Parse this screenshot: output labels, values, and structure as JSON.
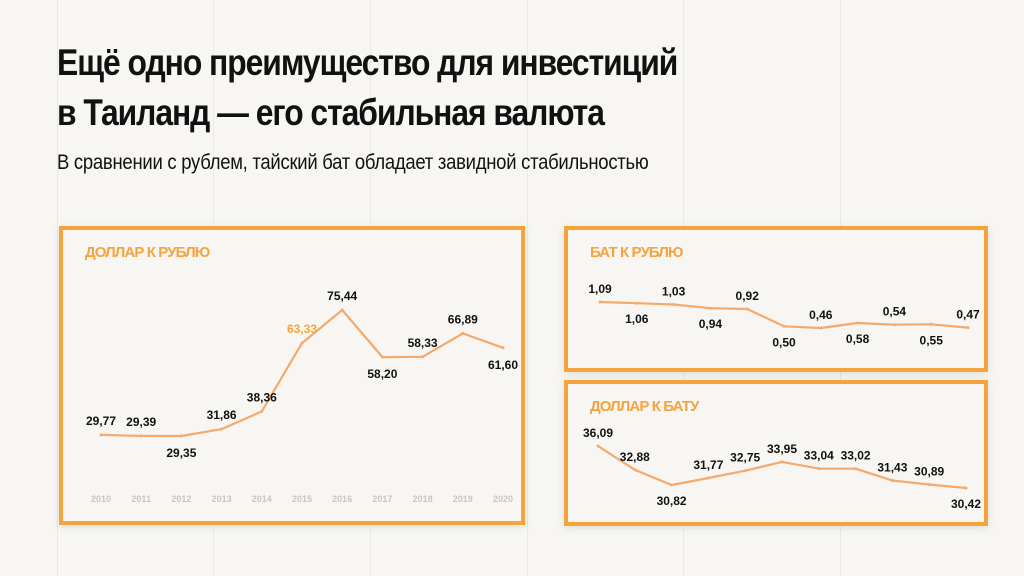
{
  "header": {
    "title_line1": "Ещё одно преимущество для инвестиций",
    "title_line2": "в Таиланд — его стабильная валюта",
    "subtitle": "В сравнении с рублем, тайский бат обладает завидной стабильностью"
  },
  "colors": {
    "accent": "#f5a33c",
    "line": "#f5a96b",
    "text": "#111111",
    "tick": "#c9c6c0"
  },
  "chart_data": [
    {
      "id": "usd_rub",
      "type": "line",
      "title": "ДОЛЛАР К РУБЛЮ",
      "x": [
        "2010",
        "2011",
        "2012",
        "2013",
        "2014",
        "2015",
        "2016",
        "2017",
        "2018",
        "2019",
        "2020"
      ],
      "values": [
        29.77,
        29.39,
        29.35,
        31.86,
        38.36,
        63.33,
        75.44,
        58.2,
        58.33,
        66.89,
        61.6
      ],
      "labels": [
        "29,77",
        "29,39",
        "29,35",
        "31,86",
        "38,36",
        "63,33",
        "75,44",
        "58,20",
        "58,33",
        "66,89",
        "61,60"
      ],
      "highlight_index": 5,
      "grid": false,
      "legend": "none"
    },
    {
      "id": "thb_rub",
      "type": "line",
      "title": "БАТ К РУБЛЮ",
      "values": [
        1.09,
        1.06,
        1.03,
        0.94,
        0.92,
        0.5,
        0.46,
        0.58,
        0.54,
        0.55,
        0.47
      ],
      "labels": [
        "1,09",
        "1,06",
        "1,03",
        "0,94",
        "0,92",
        "0,50",
        "0,46",
        "0,58",
        "0,54",
        "0,55",
        "0,47"
      ],
      "grid": false,
      "legend": "none"
    },
    {
      "id": "usd_thb",
      "type": "line",
      "title": "ДОЛЛАР К БАТУ",
      "values": [
        36.09,
        32.88,
        30.82,
        31.77,
        32.75,
        33.95,
        33.04,
        33.02,
        31.43,
        30.89,
        30.42
      ],
      "labels": [
        "36,09",
        "32,88",
        "30,82",
        "31,77",
        "32,75",
        "33,95",
        "33,04",
        "33,02",
        "31,43",
        "30,89",
        "30,42"
      ],
      "grid": false,
      "legend": "none"
    }
  ]
}
